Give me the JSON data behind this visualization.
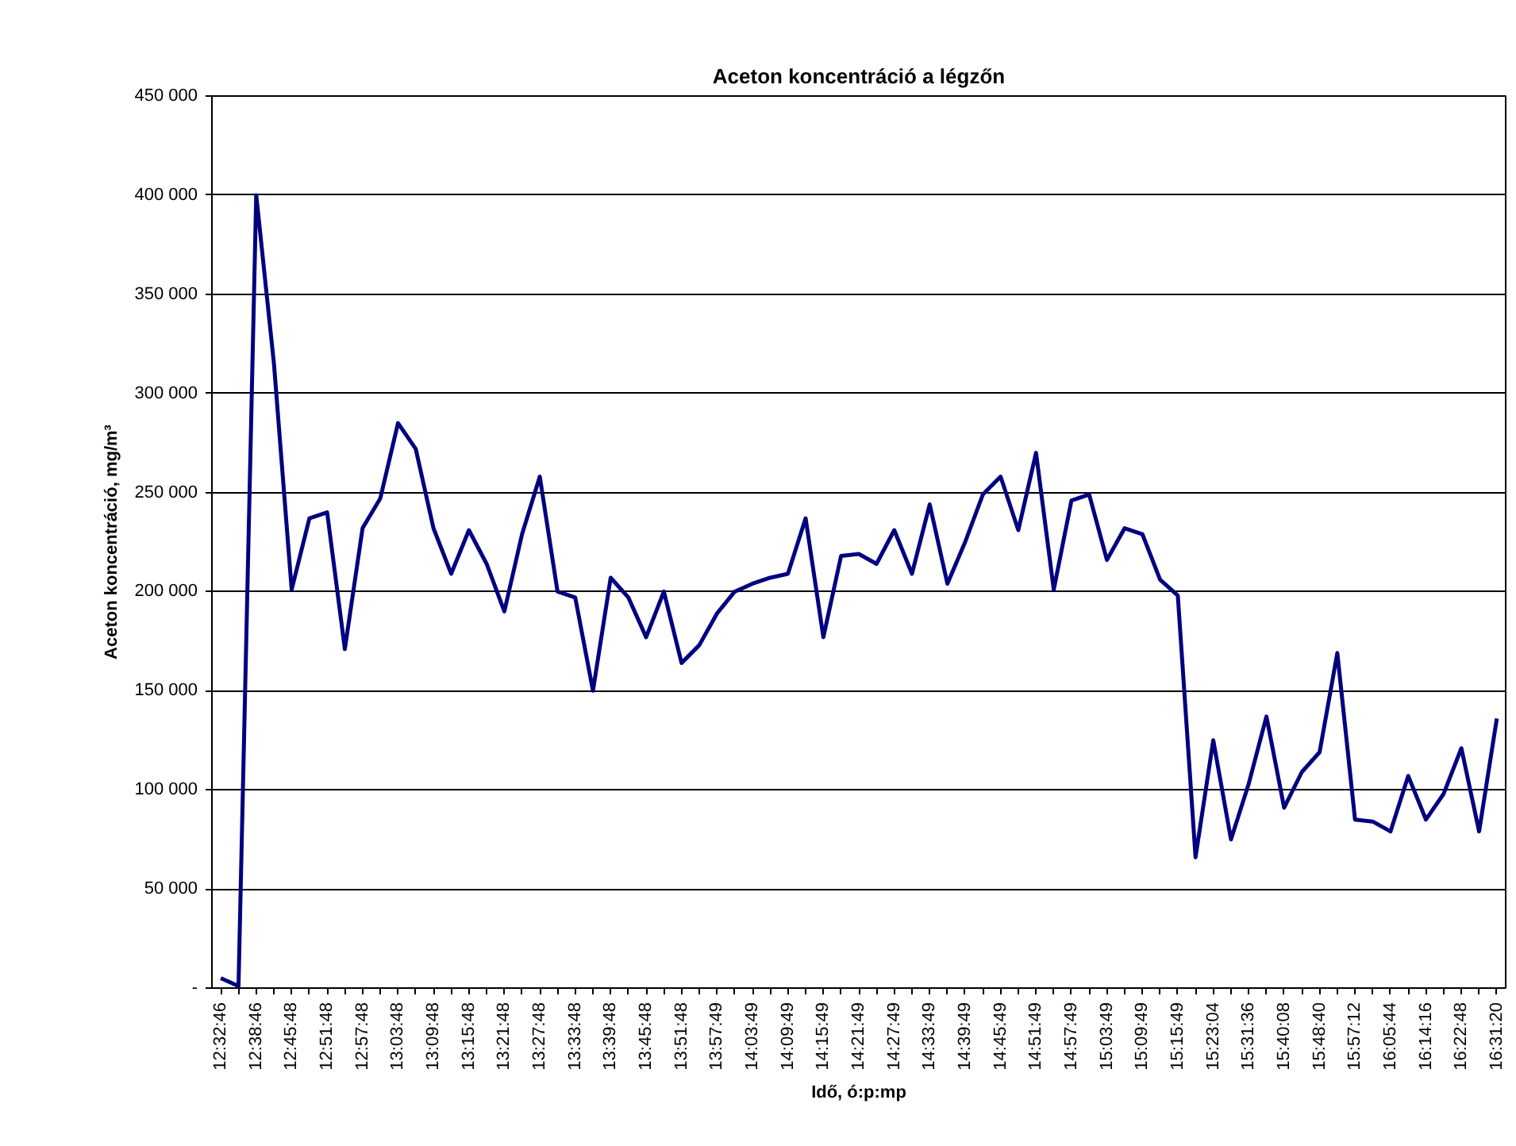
{
  "chart_data": {
    "type": "line",
    "title": "Aceton koncentráció a légzőn",
    "xlabel": "Idő, ó:p:mp",
    "ylabel": "Aceton koncentráció, mg/m³",
    "categories": [
      "12:32:46",
      null,
      "12:38:46",
      null,
      "12:45:48",
      null,
      "12:51:48",
      null,
      "12:57:48",
      null,
      "13:03:48",
      null,
      "13:09:48",
      null,
      "13:15:48",
      null,
      "13:21:48",
      null,
      "13:27:48",
      null,
      "13:33:48",
      null,
      "13:39:48",
      null,
      "13:45:48",
      null,
      "13:51:48",
      null,
      "13:57:49",
      null,
      "14:03:49",
      null,
      "14:09:49",
      null,
      "14:15:49",
      null,
      "14:21:49",
      null,
      "14:27:49",
      null,
      "14:33:49",
      null,
      "14:39:49",
      null,
      "14:45:49",
      null,
      "14:51:49",
      null,
      "14:57:49",
      null,
      "15:03:49",
      null,
      "15:09:49",
      null,
      "15:15:49",
      null,
      "15:23:04",
      null,
      "15:31:36",
      null,
      "15:40:08",
      null,
      "15:48:40",
      null,
      "15:57:12",
      null,
      "16:05:44",
      null,
      "16:14:16",
      null,
      "16:22:48",
      null,
      "16:31:20"
    ],
    "series": [
      {
        "color": "#000080",
        "values": [
          5000,
          1000,
          400000,
          315000,
          201000,
          237000,
          240000,
          171000,
          232000,
          247000,
          285000,
          272000,
          232000,
          209000,
          231000,
          214000,
          190000,
          229000,
          258000,
          200000,
          197000,
          150000,
          207000,
          197000,
          177000,
          200000,
          164000,
          173000,
          189000,
          200000,
          204000,
          207000,
          209000,
          237000,
          177000,
          218000,
          219000,
          214000,
          231000,
          209000,
          244000,
          204000,
          225000,
          249000,
          258000,
          231000,
          270000,
          201000,
          246000,
          249000,
          216000,
          232000,
          229000,
          206000,
          198000,
          66000,
          125000,
          75000,
          103000,
          137000,
          91000,
          109000,
          119000,
          169000,
          85000,
          84000,
          79000,
          107000,
          85000,
          98000,
          121000,
          79000,
          136000
        ]
      }
    ],
    "ylim": [
      0,
      450000
    ],
    "yticks": [
      {
        "value": 0,
        "label": "-"
      },
      {
        "value": 50000,
        "label": "50 000"
      },
      {
        "value": 100000,
        "label": "100 000"
      },
      {
        "value": 150000,
        "label": "150 000"
      },
      {
        "value": 200000,
        "label": "200 000"
      },
      {
        "value": 250000,
        "label": "250 000"
      },
      {
        "value": 300000,
        "label": "300 000"
      },
      {
        "value": 350000,
        "label": "350 000"
      },
      {
        "value": 400000,
        "label": "400 000"
      },
      {
        "value": 450000,
        "label": "450 000"
      }
    ],
    "grid": "y",
    "marker": "none",
    "line_style": "solid"
  }
}
